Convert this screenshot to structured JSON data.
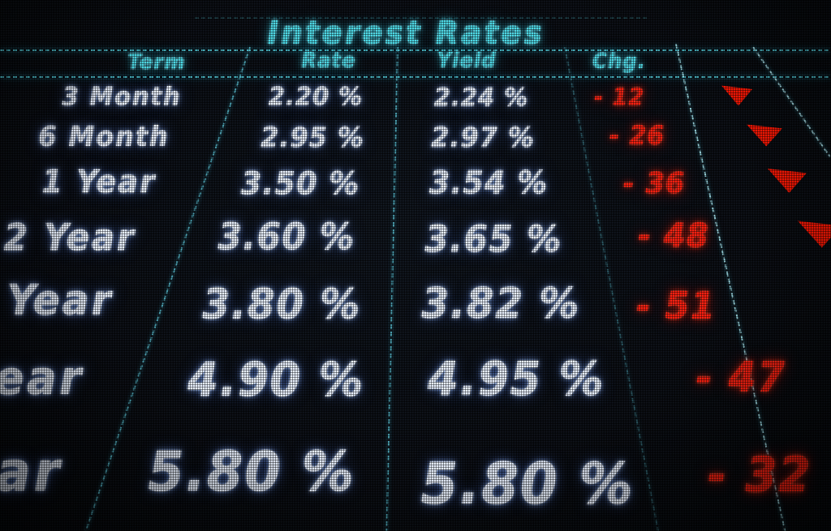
{
  "title": "Interest Rates",
  "colors": {
    "accent_cyan": "#4ed9e6",
    "text_white": "#e9f1ff",
    "alert_red": "#ff2212",
    "background": "#07090d"
  },
  "icons": {
    "change_direction": "down-triangle-icon"
  },
  "table": {
    "headers": {
      "term": "Term",
      "rate": "Rate",
      "yield": "Yield",
      "chg": "Chg."
    },
    "rows": [
      {
        "term": "3 Month",
        "rate": "2.20 %",
        "yield": "2.24 %",
        "chg": "- 12",
        "direction": "down"
      },
      {
        "term": "6 Month",
        "rate": "2.95 %",
        "yield": "2.97 %",
        "chg": "- 26",
        "direction": "down"
      },
      {
        "term": "1 Year",
        "rate": "3.50 %",
        "yield": "3.54 %",
        "chg": "- 36",
        "direction": "down"
      },
      {
        "term": "2 Year",
        "rate": "3.60 %",
        "yield": "3.65 %",
        "chg": "- 48",
        "direction": "down"
      },
      {
        "term": "Year",
        "rate": "3.80 %",
        "yield": "3.82 %",
        "chg": "- 51",
        "direction": "down"
      },
      {
        "term": "ear",
        "rate": "4.90 %",
        "yield": "4.95 %",
        "chg": "- 47",
        "direction": "down"
      },
      {
        "term": "ar",
        "rate": "5.80 %",
        "yield": "5.80 %",
        "chg": "- 32",
        "direction": "down"
      }
    ]
  },
  "chart_data": {
    "type": "table",
    "title": "Interest Rates",
    "columns": [
      "Term",
      "Rate",
      "Yield",
      "Chg."
    ],
    "rows": [
      [
        "3 Month",
        "2.20 %",
        "2.24 %",
        "- 12"
      ],
      [
        "6 Month",
        "2.95 %",
        "2.97 %",
        "- 26"
      ],
      [
        "1 Year",
        "3.50 %",
        "3.54 %",
        "- 36"
      ],
      [
        "2 Year",
        "3.60 %",
        "3.65 %",
        "- 48"
      ],
      [
        "Year",
        "3.80 %",
        "3.82 %",
        "- 51"
      ],
      [
        "ear",
        "4.90 %",
        "4.95 %",
        "- 47"
      ],
      [
        "ar",
        "5.80 %",
        "5.80 %",
        "- 32"
      ]
    ],
    "rate_values_pct": [
      2.2,
      2.95,
      3.5,
      3.6,
      3.8,
      4.9,
      5.8
    ],
    "yield_values_pct": [
      2.24,
      2.97,
      3.54,
      3.65,
      3.82,
      4.95,
      5.8
    ],
    "change_values": [
      -12,
      -26,
      -36,
      -48,
      -51,
      -47,
      -32
    ],
    "notes": "LED ticker board in perspective; all changes negative with red down triangles"
  }
}
